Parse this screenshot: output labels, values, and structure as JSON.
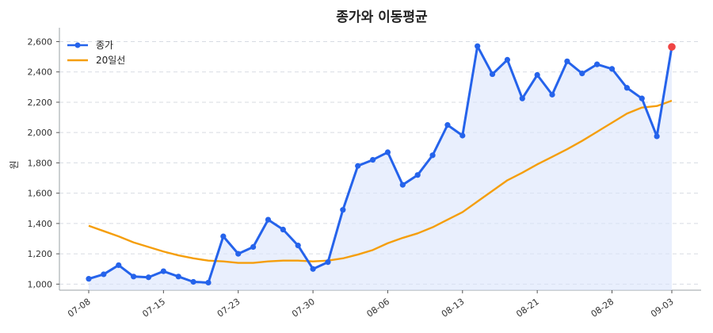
{
  "chart_data": {
    "type": "line",
    "title": "종가와 이동평균",
    "xlabel": "",
    "ylabel": "원",
    "ylim": [
      960,
      2660
    ],
    "yticks": [
      "1,000",
      "1,200",
      "1,400",
      "1,600",
      "1,800",
      "2,000",
      "2,200",
      "2,400",
      "2,600"
    ],
    "ytick_values": [
      1000,
      1200,
      1400,
      1600,
      1800,
      2000,
      2200,
      2400,
      2600
    ],
    "xticks": [
      "07-08",
      "07-15",
      "07-23",
      "07-30",
      "08-06",
      "08-13",
      "08-21",
      "08-28",
      "09-03"
    ],
    "xtick_indices": [
      0,
      5,
      10,
      15,
      20,
      25,
      30,
      35,
      39
    ],
    "grid": true,
    "legend_position": "top-left",
    "colors": {
      "close": "#2563eb",
      "ma": "#f59e0b",
      "fill": "#dbe4fb",
      "last_point": "#ef4444",
      "grid": "#d7dbe2"
    },
    "series": [
      {
        "name": "종가",
        "values": [
          1035,
          1065,
          1125,
          1050,
          1045,
          1085,
          1050,
          1015,
          1010,
          1315,
          1200,
          1245,
          1425,
          1360,
          1255,
          1100,
          1145,
          1490,
          1780,
          1820,
          1870,
          1655,
          1720,
          1850,
          2050,
          1980,
          2570,
          2385,
          2480,
          2225,
          2380,
          2250,
          2470,
          2390,
          2450,
          2420,
          2295,
          2225,
          1975,
          2565
        ]
      },
      {
        "name": "20일선",
        "values": [
          1385,
          1350,
          1315,
          1275,
          1245,
          1215,
          1190,
          1170,
          1155,
          1150,
          1140,
          1140,
          1150,
          1155,
          1155,
          1150,
          1155,
          1170,
          1195,
          1225,
          1270,
          1305,
          1335,
          1375,
          1425,
          1475,
          1545,
          1615,
          1685,
          1735,
          1790,
          1840,
          1890,
          1945,
          2005,
          2065,
          2125,
          2165,
          2175,
          2210
        ]
      }
    ]
  }
}
